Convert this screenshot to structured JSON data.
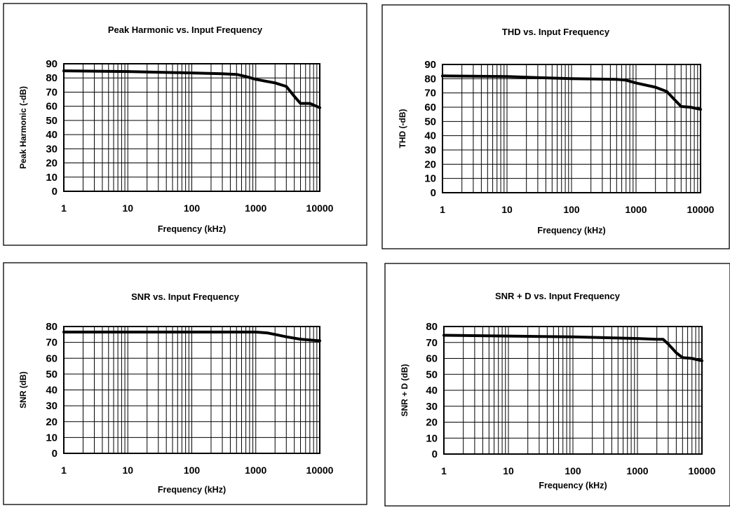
{
  "chart_data": [
    {
      "type": "line",
      "title": "Peak Harmonic vs. Input Frequency",
      "xlabel": "Frequency (kHz)",
      "ylabel": "Peak Harmonic (-dB)",
      "x_scale": "log",
      "xlim": [
        1,
        10000
      ],
      "ylim": [
        0,
        90
      ],
      "xticks": [
        1,
        10,
        100,
        1000,
        10000
      ],
      "yticks": [
        0,
        10,
        20,
        30,
        40,
        50,
        60,
        70,
        80,
        90
      ],
      "grid": true,
      "series": [
        {
          "x": [
            1,
            10,
            100,
            300,
            500,
            700,
            1000,
            2000,
            3000,
            4000,
            5000,
            7000,
            10000
          ],
          "y": [
            85,
            84.5,
            83.5,
            83,
            82.5,
            81,
            79,
            76.5,
            74,
            67,
            62,
            62,
            59
          ]
        }
      ]
    },
    {
      "type": "line",
      "title": "THD vs. Input Frequency",
      "xlabel": "Frequency (kHz)",
      "ylabel": "THD (-dB)",
      "x_scale": "log",
      "xlim": [
        1,
        10000
      ],
      "ylim": [
        0,
        90
      ],
      "xticks": [
        1,
        10,
        100,
        1000,
        10000
      ],
      "yticks": [
        0,
        10,
        20,
        30,
        40,
        50,
        60,
        70,
        80,
        90
      ],
      "grid": true,
      "series": [
        {
          "x": [
            1,
            10,
            100,
            500,
            700,
            1000,
            2000,
            3000,
            4000,
            5000,
            7000,
            10000
          ],
          "y": [
            82,
            81.5,
            80,
            79.5,
            79,
            77,
            74,
            71,
            65,
            60.5,
            60,
            58.5
          ]
        }
      ]
    },
    {
      "type": "line",
      "title": "SNR vs. Input Frequency",
      "xlabel": "Frequency (kHz)",
      "ylabel": "SNR  (dB)",
      "x_scale": "log",
      "xlim": [
        1,
        10000
      ],
      "ylim": [
        0,
        80
      ],
      "xticks": [
        1,
        10,
        100,
        1000,
        10000
      ],
      "yticks": [
        0,
        10,
        20,
        30,
        40,
        50,
        60,
        70,
        80
      ],
      "grid": true,
      "series": [
        {
          "x": [
            1,
            10,
            100,
            1000,
            1500,
            2000,
            3000,
            5000,
            7000,
            10000
          ],
          "y": [
            76.5,
            76.5,
            76.5,
            76.5,
            76,
            75,
            73.5,
            72,
            71.5,
            71
          ]
        }
      ]
    },
    {
      "type": "line",
      "title": "SNR + D  vs. Input Frequency",
      "xlabel": "Frequency (kHz)",
      "ylabel": "SNR + D  (dB)",
      "x_scale": "log",
      "xlim": [
        1,
        10000
      ],
      "ylim": [
        0,
        80
      ],
      "xticks": [
        1,
        10,
        100,
        1000,
        10000
      ],
      "yticks": [
        0,
        10,
        20,
        30,
        40,
        50,
        60,
        70,
        80
      ],
      "grid": true,
      "series": [
        {
          "x": [
            1,
            10,
            100,
            1000,
            2000,
            2500,
            3000,
            4000,
            5000,
            7000,
            10000
          ],
          "y": [
            74.5,
            74,
            73.5,
            72.5,
            72,
            72,
            69,
            63.5,
            60.5,
            60,
            58.5
          ]
        }
      ]
    }
  ]
}
